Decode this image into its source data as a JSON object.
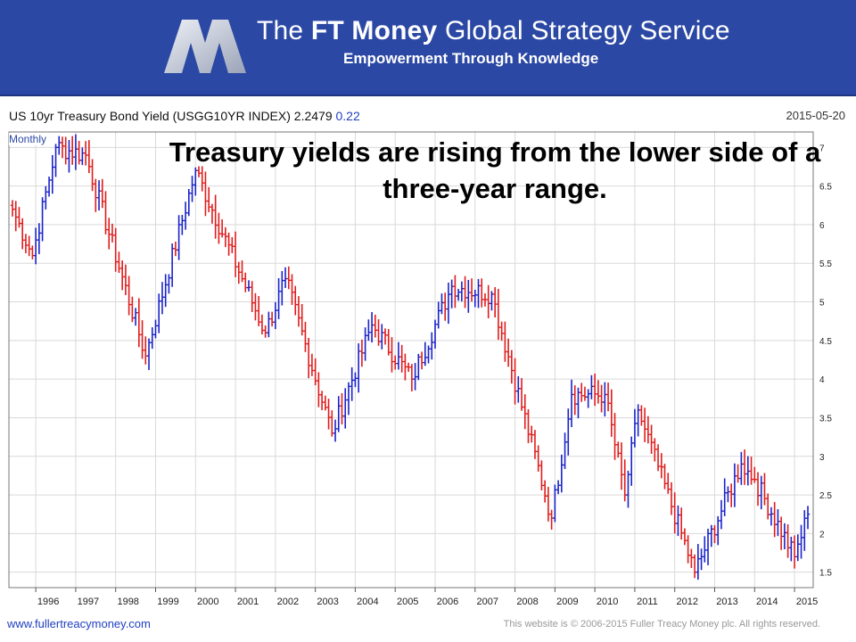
{
  "banner": {
    "title_prefix": "The ",
    "title_bold": "FT Money",
    "title_suffix": " Global Strategy Service",
    "subtitle": "Empowerment Through Knowledge"
  },
  "chart_header": {
    "title": "US 10yr Treasury Bond Yield (USGG10YR INDEX) 2.2479",
    "change": "0.22",
    "date": "2015-05-20",
    "frequency": "Monthly"
  },
  "annotation": "Treasury yields are rising from the lower side of a three-year range.",
  "footer": {
    "website": "www.fullertreacymoney.com",
    "copyright": "This website is © 2006-2015 Fuller Treacy Money plc. All rights reserved."
  },
  "colors": {
    "up": "#1a23c8",
    "down": "#e01c1c",
    "banner": "#2b48a4",
    "grid": "#d9d9d9"
  },
  "chart_data": {
    "type": "ohlc-bar",
    "frequency": "monthly",
    "x_ticks": [
      "1996",
      "1997",
      "1998",
      "1999",
      "2000",
      "2001",
      "2002",
      "2003",
      "2004",
      "2005",
      "2006",
      "2007",
      "2008",
      "2009",
      "2010",
      "2011",
      "2012",
      "2013",
      "2014",
      "2015"
    ],
    "y_ticks": [
      "1.5",
      "2",
      "2.5",
      "3",
      "3.5",
      "4",
      "4.5",
      "5",
      "5.5",
      "6",
      "6.5",
      "7"
    ],
    "ylim": [
      1.3,
      7.2
    ],
    "x_start": "1995-06",
    "x_end": "2015-05",
    "key_points": [
      {
        "date": "1995-06",
        "yield": 6.2
      },
      {
        "date": "1995-12",
        "yield": 5.6
      },
      {
        "date": "1996-07",
        "yield": 7.0
      },
      {
        "date": "1997-04",
        "yield": 6.9
      },
      {
        "date": "1998-10",
        "yield": 4.3
      },
      {
        "date": "2000-01",
        "yield": 6.7
      },
      {
        "date": "2001-10",
        "yield": 4.6
      },
      {
        "date": "2002-04",
        "yield": 5.3
      },
      {
        "date": "2003-06",
        "yield": 3.3
      },
      {
        "date": "2004-06",
        "yield": 4.7
      },
      {
        "date": "2005-06",
        "yield": 4.0
      },
      {
        "date": "2006-06",
        "yield": 5.2
      },
      {
        "date": "2007-06",
        "yield": 5.1
      },
      {
        "date": "2008-12",
        "yield": 2.2
      },
      {
        "date": "2009-06",
        "yield": 3.8
      },
      {
        "date": "2010-04",
        "yield": 3.8
      },
      {
        "date": "2010-10",
        "yield": 2.5
      },
      {
        "date": "2011-02",
        "yield": 3.6
      },
      {
        "date": "2012-07",
        "yield": 1.5
      },
      {
        "date": "2013-09",
        "yield": 2.9
      },
      {
        "date": "2014-01",
        "yield": 2.7
      },
      {
        "date": "2015-01",
        "yield": 1.7
      },
      {
        "date": "2015-05",
        "yield": 2.25
      }
    ]
  }
}
